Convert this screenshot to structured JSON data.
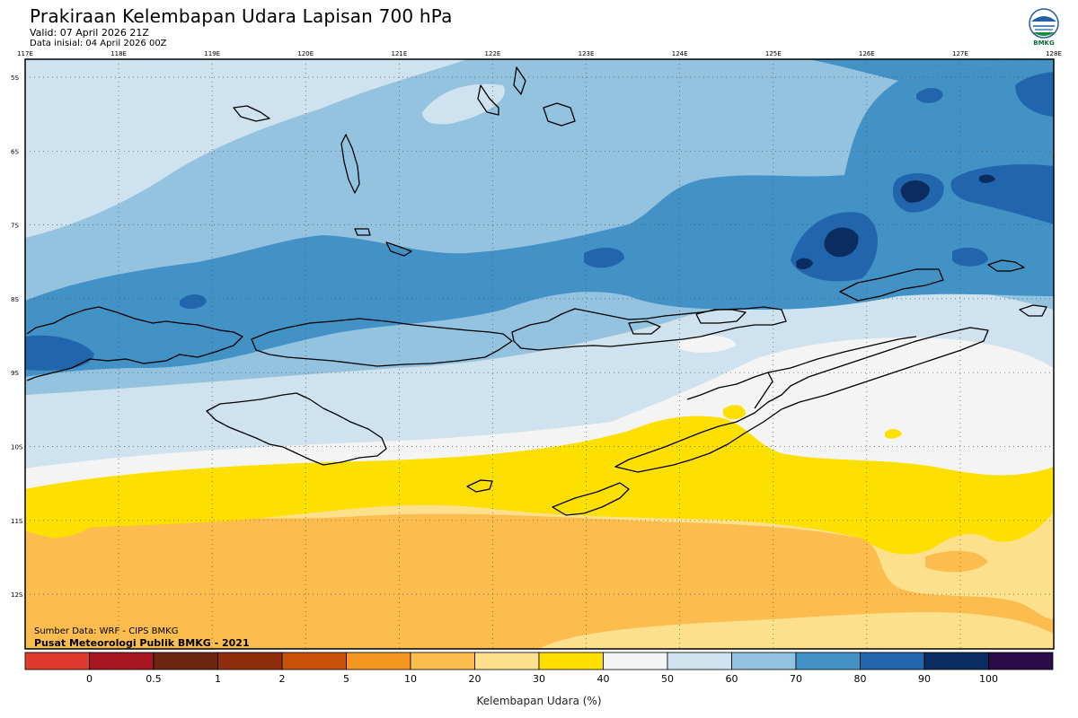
{
  "header": {
    "title": "Prakiraan Kelembapan Udara Lapisan 700 hPa",
    "valid": "Valid: 07 April 2026 21Z",
    "init": "Data inisial: 04 April 2026 00Z",
    "logo_text": "BMKG"
  },
  "map": {
    "lon_labels": [
      "117E",
      "118E",
      "119E",
      "120E",
      "121E",
      "122E",
      "123E",
      "124E",
      "125E",
      "126E",
      "127E",
      "128E"
    ],
    "lat_labels": [
      "5S",
      "6S",
      "7S",
      "8S",
      "9S",
      "10S",
      "11S",
      "12S"
    ]
  },
  "footer": {
    "source": "Sumber Data: WRF - CIPS BMKG",
    "credit": "Pusat Meteorologi Publik BMKG - 2021"
  },
  "colorbar": {
    "title": "Kelembapan Udara (%)",
    "labels": [
      "0",
      "0.5",
      "1",
      "2",
      "5",
      "10",
      "20",
      "30",
      "40",
      "50",
      "60",
      "70",
      "80",
      "90",
      "100"
    ],
    "colors": [
      "#e03a2e",
      "#a51620",
      "#6b2810",
      "#8e2e0c",
      "#c85008",
      "#f4951f",
      "#fcbc4e",
      "#fde08c",
      "#fde000",
      "#f4f4f4",
      "#cfe2ef",
      "#93c3df",
      "#4292c6",
      "#2166ac",
      "#0b2c5e",
      "#2b0b4a"
    ]
  },
  "legend_colors": {
    "c30": "#fde08c",
    "c40": "#fde000",
    "c20": "#fcbc4e",
    "c50": "#f4f4f4",
    "c60": "#cfe2ef",
    "c70": "#93c3df",
    "c80": "#4292c6",
    "c90": "#2166ac",
    "c100": "#0b2c5e"
  }
}
